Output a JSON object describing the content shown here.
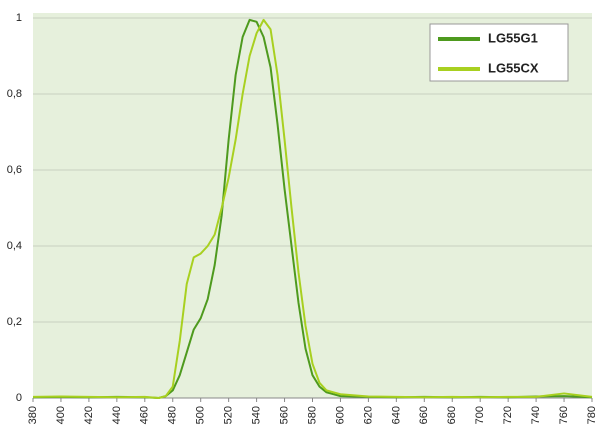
{
  "chart_data": {
    "type": "line",
    "x": [
      380,
      400,
      420,
      440,
      460,
      470,
      475,
      480,
      485,
      490,
      495,
      500,
      505,
      510,
      515,
      520,
      525,
      530,
      535,
      540,
      545,
      550,
      555,
      560,
      565,
      570,
      575,
      580,
      585,
      590,
      595,
      600,
      620,
      640,
      660,
      680,
      700,
      720,
      740,
      760,
      780
    ],
    "series": [
      {
        "name": "LG55G1",
        "color": "#4e9a1e",
        "values": [
          0.002,
          0.003,
          0.002,
          0.003,
          0.002,
          0,
          0.005,
          0.02,
          0.06,
          0.12,
          0.18,
          0.21,
          0.26,
          0.35,
          0.48,
          0.68,
          0.85,
          0.95,
          0.995,
          0.99,
          0.95,
          0.87,
          0.72,
          0.55,
          0.4,
          0.25,
          0.13,
          0.06,
          0.03,
          0.015,
          0.01,
          0.005,
          0.003,
          0.002,
          0.003,
          0.002,
          0.003,
          0.002,
          0.004,
          0.005,
          0.002
        ]
      },
      {
        "name": "LG55CX",
        "color": "#a8d020",
        "values": [
          0.003,
          0.004,
          0.003,
          0.002,
          0.003,
          0,
          0.005,
          0.03,
          0.15,
          0.3,
          0.37,
          0.38,
          0.4,
          0.43,
          0.5,
          0.58,
          0.68,
          0.8,
          0.9,
          0.96,
          0.995,
          0.97,
          0.85,
          0.68,
          0.5,
          0.33,
          0.19,
          0.09,
          0.04,
          0.02,
          0.015,
          0.01,
          0.004,
          0.003,
          0.002,
          0.003,
          0.002,
          0.003,
          0.003,
          0.012,
          0.003
        ]
      }
    ],
    "xlim": [
      380,
      780
    ],
    "xticks": [
      380,
      400,
      420,
      440,
      460,
      480,
      500,
      520,
      540,
      560,
      580,
      600,
      620,
      640,
      660,
      680,
      700,
      720,
      740,
      760,
      780
    ],
    "ylim": [
      0,
      1
    ],
    "yticks": [
      0,
      {
        "value": 0.2,
        "label": "0,2"
      },
      {
        "value": 0.4,
        "label": "0,4"
      },
      {
        "value": 0.6,
        "label": "0,6"
      },
      {
        "value": 0.8,
        "label": "0,8"
      },
      1
    ],
    "grid": true
  }
}
